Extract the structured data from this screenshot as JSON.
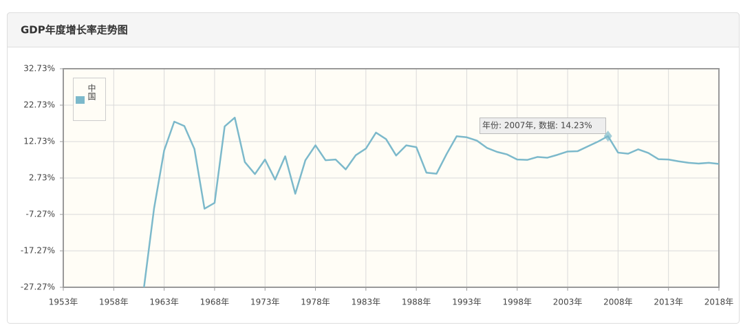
{
  "chart_data": {
    "type": "line",
    "title": "GDP年度增长率走势图",
    "x": [
      1961,
      1962,
      1963,
      1964,
      1965,
      1966,
      1967,
      1968,
      1969,
      1970,
      1971,
      1972,
      1973,
      1974,
      1975,
      1976,
      1977,
      1978,
      1979,
      1980,
      1981,
      1982,
      1983,
      1984,
      1985,
      1986,
      1987,
      1988,
      1989,
      1990,
      1991,
      1992,
      1993,
      1994,
      1995,
      1996,
      1997,
      1998,
      1999,
      2000,
      2001,
      2002,
      2003,
      2004,
      2005,
      2006,
      2007,
      2008,
      2009,
      2010,
      2011,
      2012,
      2013,
      2014,
      2015,
      2016,
      2017,
      2018
    ],
    "series": [
      {
        "name": "中国",
        "color": "#7cb9cb",
        "values": [
          -27.3,
          -5.6,
          10.3,
          18.2,
          17.0,
          10.7,
          -5.7,
          -4.1,
          16.9,
          19.3,
          7.1,
          3.8,
          7.8,
          2.3,
          8.7,
          -1.6,
          7.6,
          11.7,
          7.6,
          7.8,
          5.1,
          9.0,
          10.8,
          15.2,
          13.4,
          8.9,
          11.7,
          11.2,
          4.2,
          3.9,
          9.3,
          14.2,
          13.9,
          13.0,
          11.0,
          9.9,
          9.2,
          7.8,
          7.7,
          8.5,
          8.3,
          9.1,
          10.0,
          10.1,
          11.4,
          12.7,
          14.23,
          9.7,
          9.4,
          10.6,
          9.6,
          7.9,
          7.8,
          7.3,
          6.9,
          6.7,
          6.9,
          6.6
        ]
      }
    ],
    "xlim": [
      1953,
      2018
    ],
    "xticks": [
      {
        "value": 1953,
        "label": "1953年"
      },
      {
        "value": 1958,
        "label": "1958年"
      },
      {
        "value": 1963,
        "label": "1963年"
      },
      {
        "value": 1968,
        "label": "1968年"
      },
      {
        "value": 1973,
        "label": "1973年"
      },
      {
        "value": 1978,
        "label": "1978年"
      },
      {
        "value": 1983,
        "label": "1983年"
      },
      {
        "value": 1988,
        "label": "1988年"
      },
      {
        "value": 1993,
        "label": "1993年"
      },
      {
        "value": 1998,
        "label": "1998年"
      },
      {
        "value": 2003,
        "label": "2003年"
      },
      {
        "value": 2008,
        "label": "2008年"
      },
      {
        "value": 2013,
        "label": "2013年"
      },
      {
        "value": 2018,
        "label": "2018年"
      }
    ],
    "ylim": [
      -27.27,
      32.73
    ],
    "yticks": [
      {
        "value": -27.27,
        "label": "-27.27%"
      },
      {
        "value": -17.27,
        "label": "-17.27%"
      },
      {
        "value": -7.27,
        "label": "-7.27%"
      },
      {
        "value": 2.73,
        "label": "2.73%"
      },
      {
        "value": 12.73,
        "label": "12.73%"
      },
      {
        "value": 22.73,
        "label": "22.73%"
      },
      {
        "value": 32.73,
        "label": "32.73%"
      }
    ],
    "grid": true,
    "legend": "upper left",
    "annotation": "年份: 2007年, 数据: 14.23%"
  }
}
